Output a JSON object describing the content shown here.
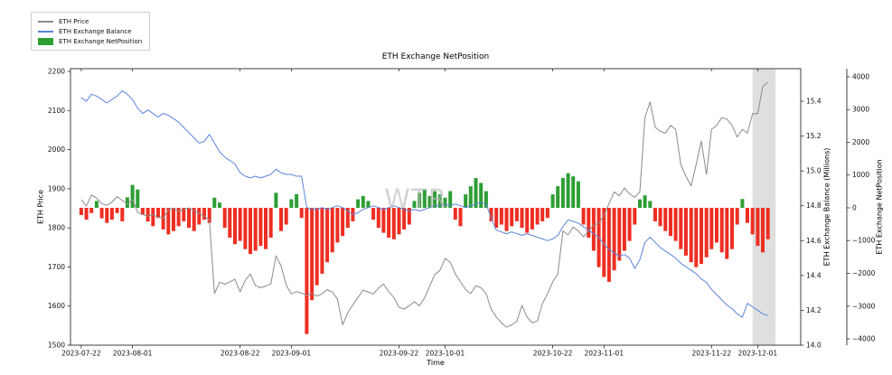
{
  "watermark": "WTR",
  "legend": [
    {
      "label": "ETH Price",
      "swatch": "line",
      "color": "#8a8a8a"
    },
    {
      "label": "ETH Exchange Balance",
      "swatch": "line",
      "color": "#5c85db"
    },
    {
      "label": "ETH Exchange NetPosition",
      "swatch": "patch",
      "color": "#2d9e34"
    }
  ],
  "chart_data": {
    "type": "mixed",
    "title": "ETH Exchange NetPosition",
    "xlabel": "Time",
    "x_unit": "days since 2023-07-22, daily points",
    "x_start_date": "2023-07-22",
    "x_end_date": "2023-12-03",
    "x_range_days": [
      -2.1,
      140.4
    ],
    "x_tick_days": [
      0,
      10,
      31,
      41,
      62,
      71,
      92,
      102,
      123,
      132
    ],
    "x_tick_labels": [
      "2023-07-22",
      "2023-08-01",
      "2023-08-22",
      "2023-09-01",
      "2023-09-22",
      "2023-10-01",
      "2023-10-22",
      "2023-11-01",
      "2023-11-22",
      "2023-12-01"
    ],
    "grid": false,
    "legend_position": "upper-left-outside",
    "highlight_band": {
      "start_day": 131,
      "end_day": 135.5,
      "color": "#d9d9d9"
    },
    "axes": {
      "price": {
        "label": "ETH Price",
        "side": "left",
        "ticks": [
          1500,
          1600,
          1700,
          1800,
          1900,
          2000,
          2100,
          2200
        ],
        "range": [
          1500,
          2207
        ]
      },
      "balance": {
        "label": "ETH Exchange Balance (Millions)",
        "side": "right",
        "ticks": [
          14.0,
          14.2,
          14.4,
          14.6,
          14.8,
          15.0,
          15.2,
          15.4
        ],
        "range": [
          14.0,
          15.587
        ]
      },
      "netposition": {
        "label": "ETH Exchange NetPosition",
        "side": "right-offset",
        "ticks": [
          -4000,
          -3000,
          -2000,
          -1000,
          0,
          1000,
          2000,
          3000,
          4000
        ],
        "range": [
          -4193,
          4248
        ]
      }
    },
    "series": [
      {
        "name": "ETH Price",
        "type": "line",
        "axis": "price",
        "color": "#8a8a8a",
        "values": [
          1872,
          1856,
          1884,
          1876,
          1862,
          1858,
          1866,
          1880,
          1870,
          1861,
          1872,
          1840,
          1834,
          1830,
          1833,
          1828,
          1824,
          1846,
          1850,
          1842,
          1847,
          1851,
          1844,
          1838,
          1829,
          1821,
          1632,
          1661,
          1656,
          1662,
          1669,
          1636,
          1666,
          1682,
          1652,
          1647,
          1651,
          1657,
          1728,
          1703,
          1653,
          1631,
          1637,
          1633,
          1628,
          1632,
          1626,
          1631,
          1642,
          1636,
          1618,
          1552,
          1583,
          1603,
          1622,
          1641,
          1636,
          1631,
          1646,
          1656,
          1637,
          1622,
          1597,
          1592,
          1601,
          1611,
          1601,
          1621,
          1651,
          1681,
          1691,
          1722,
          1712,
          1682,
          1662,
          1642,
          1632,
          1652,
          1647,
          1632,
          1592,
          1572,
          1557,
          1546,
          1552,
          1561,
          1602,
          1572,
          1557,
          1562,
          1606,
          1632,
          1662,
          1682,
          1792,
          1782,
          1802,
          1792,
          1777,
          1792,
          1807,
          1812,
          1832,
          1862,
          1892,
          1882,
          1902,
          1887,
          1878,
          1892,
          2082,
          2122,
          2057,
          2047,
          2042,
          2062,
          2052,
          1962,
          1932,
          1907,
          1962,
          2022,
          1937,
          2052,
          2062,
          2082,
          2078,
          2062,
          2032,
          2052,
          2042,
          2092,
          2092,
          2162,
          2172
        ]
      },
      {
        "name": "ETH Exchange Balance",
        "type": "line",
        "axis": "balance",
        "color": "#5c85db",
        "values": [
          15.42,
          15.4,
          15.44,
          15.43,
          15.41,
          15.39,
          15.41,
          15.43,
          15.46,
          15.44,
          15.41,
          15.36,
          15.33,
          15.35,
          15.33,
          15.31,
          15.33,
          15.32,
          15.3,
          15.28,
          15.25,
          15.22,
          15.19,
          15.16,
          15.17,
          15.21,
          15.16,
          15.11,
          15.08,
          15.06,
          15.04,
          14.99,
          14.97,
          14.96,
          14.97,
          14.96,
          14.97,
          14.98,
          15.01,
          14.99,
          14.98,
          14.98,
          14.97,
          14.97,
          14.79,
          14.78,
          14.78,
          14.79,
          14.78,
          14.79,
          14.8,
          14.79,
          14.77,
          14.75,
          14.76,
          14.78,
          14.79,
          14.8,
          14.79,
          14.78,
          14.79,
          14.8,
          14.79,
          14.78,
          14.77,
          14.78,
          14.77,
          14.78,
          14.79,
          14.8,
          14.8,
          14.81,
          14.8,
          14.81,
          14.8,
          14.79,
          14.8,
          14.81,
          14.82,
          14.81,
          14.73,
          14.66,
          14.65,
          14.64,
          14.65,
          14.64,
          14.63,
          14.64,
          14.63,
          14.62,
          14.61,
          14.6,
          14.61,
          14.63,
          14.68,
          14.72,
          14.71,
          14.7,
          14.68,
          14.66,
          14.64,
          14.62,
          14.58,
          14.55,
          14.53,
          14.51,
          14.52,
          14.5,
          14.44,
          14.49,
          14.59,
          14.62,
          14.59,
          14.56,
          14.54,
          14.52,
          14.5,
          14.47,
          14.45,
          14.43,
          14.41,
          14.38,
          14.36,
          14.32,
          14.29,
          14.26,
          14.23,
          14.21,
          14.18,
          14.16,
          14.24,
          14.22,
          14.2,
          14.18,
          14.17
        ]
      },
      {
        "name": "ETH Exchange NetPosition",
        "type": "bar",
        "axis": "netposition",
        "positive_color": "#2d9e34",
        "negative_color": "#ee2e22",
        "values": [
          -220,
          -360,
          -160,
          210,
          -320,
          -460,
          -360,
          -160,
          -410,
          320,
          700,
          560,
          -210,
          -420,
          -560,
          -310,
          -660,
          -810,
          -710,
          -560,
          -410,
          -610,
          -710,
          -510,
          -360,
          -460,
          310,
          160,
          -610,
          -910,
          -1110,
          -1010,
          -1260,
          -1410,
          -1310,
          -1160,
          -1260,
          -910,
          460,
          -710,
          -510,
          260,
          420,
          -310,
          -3850,
          -2820,
          -2360,
          -2010,
          -1660,
          -1360,
          -1060,
          -860,
          -610,
          -410,
          260,
          360,
          210,
          -360,
          -610,
          -760,
          -910,
          -960,
          -810,
          -660,
          -510,
          210,
          460,
          560,
          360,
          510,
          410,
          310,
          510,
          -360,
          -560,
          410,
          660,
          910,
          760,
          510,
          -410,
          -610,
          -510,
          -710,
          -560,
          -410,
          -610,
          -760,
          -660,
          -510,
          -410,
          -310,
          410,
          660,
          910,
          1060,
          960,
          810,
          -510,
          -910,
          -1310,
          -1810,
          -2110,
          -2260,
          -1910,
          -1610,
          -1310,
          -1010,
          -510,
          260,
          380,
          210,
          -410,
          -560,
          -710,
          -860,
          -1010,
          -1260,
          -1460,
          -1660,
          -1810,
          -1710,
          -1510,
          -1260,
          -1060,
          -1360,
          -1560,
          -1260,
          -510,
          270,
          -460,
          -810,
          -1160,
          -1360,
          -960
        ]
      }
    ]
  }
}
